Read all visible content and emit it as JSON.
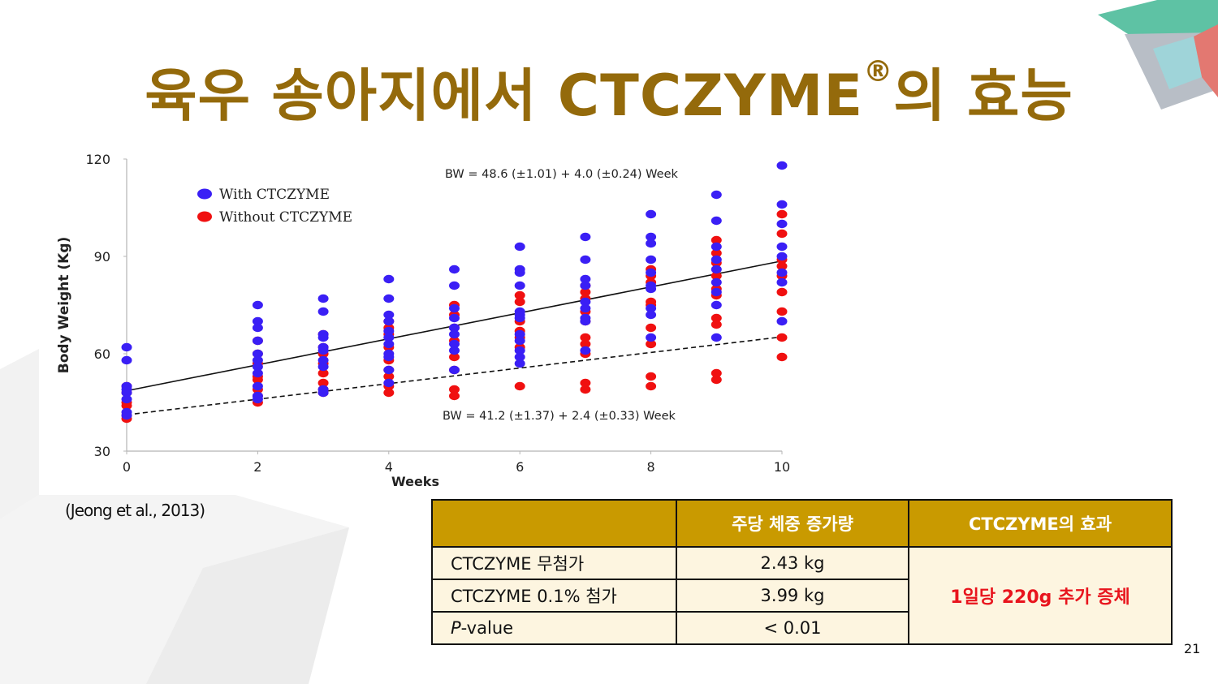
{
  "slide": {
    "title_main": "육우 송아지에서 CTCZYME",
    "title_reg": "®",
    "title_end": "의 효능",
    "citation": "(Jeong et al., 2013)",
    "page_number": "21"
  },
  "table": {
    "headers": [
      "",
      "주당 체중 증가량",
      "CTCZYME의 효과"
    ],
    "rows": [
      {
        "label": "CTCZYME 무첨가",
        "value": "2.43 kg"
      },
      {
        "label_italic": "P",
        "label_rest": "-value",
        "value": "< 0.01"
      },
      {
        "label": "CTCZYME 0.1% 첨가",
        "value": "3.99 kg"
      }
    ],
    "effect": "1일당 220g 추가 증체"
  },
  "chart_data": {
    "type": "scatter",
    "xlabel": "Weeks",
    "ylabel": "Body Weight (Kg)",
    "xlim": [
      0,
      10
    ],
    "ylim": [
      30,
      120
    ],
    "xticks": [
      0,
      2,
      4,
      6,
      8,
      10
    ],
    "yticks": [
      30,
      60,
      90,
      120
    ],
    "legend_position": "top-left",
    "grid": false,
    "series": [
      {
        "name": "With CTCZYME",
        "color": "#3a1ff5",
        "points": [
          [
            0,
            62
          ],
          [
            0,
            58
          ],
          [
            0,
            50
          ],
          [
            0,
            49
          ],
          [
            0,
            48
          ],
          [
            0,
            46
          ],
          [
            0,
            42
          ],
          [
            0,
            41
          ],
          [
            2,
            75
          ],
          [
            2,
            70
          ],
          [
            2,
            68
          ],
          [
            2,
            64
          ],
          [
            2,
            60
          ],
          [
            2,
            58
          ],
          [
            2,
            56
          ],
          [
            2,
            54
          ],
          [
            2,
            50
          ],
          [
            2,
            47
          ],
          [
            2,
            46
          ],
          [
            3,
            77
          ],
          [
            3,
            73
          ],
          [
            3,
            66
          ],
          [
            3,
            65
          ],
          [
            3,
            62
          ],
          [
            3,
            61
          ],
          [
            3,
            58
          ],
          [
            3,
            56
          ],
          [
            3,
            49
          ],
          [
            3,
            48
          ],
          [
            4,
            83
          ],
          [
            4,
            77
          ],
          [
            4,
            72
          ],
          [
            4,
            70
          ],
          [
            4,
            67
          ],
          [
            4,
            65
          ],
          [
            4,
            63
          ],
          [
            4,
            60
          ],
          [
            4,
            59
          ],
          [
            4,
            55
          ],
          [
            4,
            51
          ],
          [
            5,
            86
          ],
          [
            5,
            81
          ],
          [
            5,
            74
          ],
          [
            5,
            71
          ],
          [
            5,
            68
          ],
          [
            5,
            66
          ],
          [
            5,
            63
          ],
          [
            5,
            61
          ],
          [
            5,
            55
          ],
          [
            6,
            93
          ],
          [
            6,
            86
          ],
          [
            6,
            85
          ],
          [
            6,
            81
          ],
          [
            6,
            73
          ],
          [
            6,
            72
          ],
          [
            6,
            71
          ],
          [
            6,
            66
          ],
          [
            6,
            64
          ],
          [
            6,
            61
          ],
          [
            6,
            59
          ],
          [
            6,
            57
          ],
          [
            7,
            96
          ],
          [
            7,
            89
          ],
          [
            7,
            83
          ],
          [
            7,
            81
          ],
          [
            7,
            76
          ],
          [
            7,
            74
          ],
          [
            7,
            71
          ],
          [
            7,
            70
          ],
          [
            7,
            61
          ],
          [
            8,
            103
          ],
          [
            8,
            96
          ],
          [
            8,
            94
          ],
          [
            8,
            89
          ],
          [
            8,
            85
          ],
          [
            8,
            81
          ],
          [
            8,
            80
          ],
          [
            8,
            74
          ],
          [
            8,
            72
          ],
          [
            8,
            65
          ],
          [
            9,
            109
          ],
          [
            9,
            101
          ],
          [
            9,
            93
          ],
          [
            9,
            89
          ],
          [
            9,
            86
          ],
          [
            9,
            82
          ],
          [
            9,
            79
          ],
          [
            9,
            75
          ],
          [
            9,
            65
          ],
          [
            10,
            118
          ],
          [
            10,
            106
          ],
          [
            10,
            100
          ],
          [
            10,
            93
          ],
          [
            10,
            90
          ],
          [
            10,
            85
          ],
          [
            10,
            82
          ],
          [
            10,
            70
          ]
        ],
        "fit": {
          "intercept": 48.6,
          "slope": 4.0,
          "style": "solid",
          "equation": "BW = 48.6 (±1.01) + 4.0 (±0.24) Week"
        }
      },
      {
        "name": "Without CTCZYME",
        "color": "#f01010",
        "points": [
          [
            0,
            50
          ],
          [
            0,
            48
          ],
          [
            0,
            45
          ],
          [
            0,
            44
          ],
          [
            0,
            41
          ],
          [
            0,
            40
          ],
          [
            2,
            64
          ],
          [
            2,
            60
          ],
          [
            2,
            57
          ],
          [
            2,
            53
          ],
          [
            2,
            52
          ],
          [
            2,
            49
          ],
          [
            2,
            47
          ],
          [
            2,
            45
          ],
          [
            3,
            66
          ],
          [
            3,
            62
          ],
          [
            3,
            60
          ],
          [
            3,
            57
          ],
          [
            3,
            54
          ],
          [
            3,
            51
          ],
          [
            3,
            49
          ],
          [
            3,
            48
          ],
          [
            4,
            70
          ],
          [
            4,
            68
          ],
          [
            4,
            66
          ],
          [
            4,
            62
          ],
          [
            4,
            58
          ],
          [
            4,
            55
          ],
          [
            4,
            53
          ],
          [
            4,
            50
          ],
          [
            4,
            48
          ],
          [
            5,
            75
          ],
          [
            5,
            72
          ],
          [
            5,
            68
          ],
          [
            5,
            64
          ],
          [
            5,
            59
          ],
          [
            5,
            55
          ],
          [
            5,
            49
          ],
          [
            5,
            47
          ],
          [
            6,
            78
          ],
          [
            6,
            76
          ],
          [
            6,
            70
          ],
          [
            6,
            67
          ],
          [
            6,
            65
          ],
          [
            6,
            62
          ],
          [
            6,
            50
          ],
          [
            7,
            81
          ],
          [
            7,
            79
          ],
          [
            7,
            77
          ],
          [
            7,
            73
          ],
          [
            7,
            70
          ],
          [
            7,
            65
          ],
          [
            7,
            63
          ],
          [
            7,
            60
          ],
          [
            7,
            51
          ],
          [
            7,
            49
          ],
          [
            8,
            86
          ],
          [
            8,
            84
          ],
          [
            8,
            82
          ],
          [
            8,
            76
          ],
          [
            8,
            75
          ],
          [
            8,
            68
          ],
          [
            8,
            63
          ],
          [
            8,
            53
          ],
          [
            8,
            50
          ],
          [
            9,
            95
          ],
          [
            9,
            91
          ],
          [
            9,
            88
          ],
          [
            9,
            84
          ],
          [
            9,
            80
          ],
          [
            9,
            78
          ],
          [
            9,
            71
          ],
          [
            9,
            69
          ],
          [
            9,
            54
          ],
          [
            9,
            52
          ],
          [
            10,
            103
          ],
          [
            10,
            97
          ],
          [
            10,
            89
          ],
          [
            10,
            87
          ],
          [
            10,
            84
          ],
          [
            10,
            79
          ],
          [
            10,
            73
          ],
          [
            10,
            65
          ],
          [
            10,
            59
          ]
        ],
        "fit": {
          "intercept": 41.2,
          "slope": 2.4,
          "style": "dashed",
          "equation": "BW = 41.2 (±1.37) + 2.4 (±0.33) Week"
        }
      }
    ]
  }
}
